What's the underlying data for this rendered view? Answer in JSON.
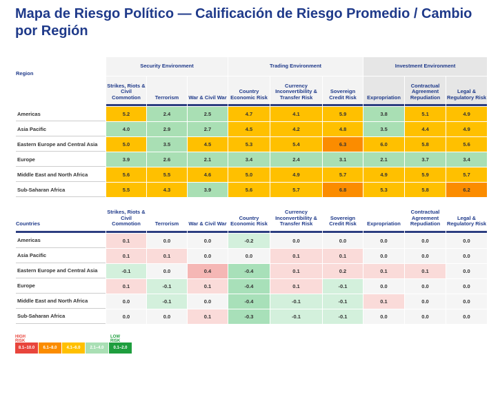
{
  "title": "Mapa de Riesgo Político — Calificación de Riesgo Promedio / Cambio por Región",
  "chart_data": [
    {
      "type": "heatmap",
      "title": "Average risk rating",
      "row_header": "Region",
      "groups": [
        {
          "label": "Security Environment",
          "span": 3
        },
        {
          "label": "Trading Environment",
          "span": 3
        },
        {
          "label": "Investment Environment",
          "span": 3
        }
      ],
      "columns": [
        "Strikes, Riots & Civil Commotion",
        "Terrorism",
        "War & Civil War",
        "Country Economic Risk",
        "Currency Inconvertibility & Transfer Risk",
        "Sovereign Credit Risk",
        "Expropriation",
        "Contractual Agreement Repudiation",
        "Legal & Regulatory Risk"
      ],
      "rows": [
        {
          "label": "Americas",
          "values": [
            "5.2",
            "2.4",
            "2.5",
            "4.7",
            "4.1",
            "5.9",
            "3.8",
            "5.1",
            "4.9"
          ]
        },
        {
          "label": "Asia Pacific",
          "values": [
            "4.0",
            "2.9",
            "2.7",
            "4.5",
            "4.2",
            "4.8",
            "3.5",
            "4.4",
            "4.9"
          ]
        },
        {
          "label": "Eastern Europe and Central Asia",
          "values": [
            "5.0",
            "3.5",
            "4.5",
            "5.3",
            "5.4",
            "6.3",
            "6.0",
            "5.8",
            "5.6"
          ]
        },
        {
          "label": "Europe",
          "values": [
            "3.9",
            "2.6",
            "2.1",
            "3.4",
            "2.4",
            "3.1",
            "2.1",
            "3.7",
            "3.4"
          ]
        },
        {
          "label": "Middle East and North Africa",
          "values": [
            "5.6",
            "5.5",
            "4.6",
            "5.0",
            "4.9",
            "5.7",
            "4.9",
            "5.9",
            "5.7"
          ]
        },
        {
          "label": "Sub-Saharan Africa",
          "values": [
            "5.5",
            "4.3",
            "3.9",
            "5.6",
            "5.7",
            "6.8",
            "5.3",
            "5.8",
            "6.2"
          ]
        }
      ]
    },
    {
      "type": "heatmap",
      "title": "Change",
      "row_header": "Countries",
      "columns": [
        "Strikes, Riots & Civil Commotion",
        "Terrorism",
        "War & Civil War",
        "Country Economic Risk",
        "Currency Inconvertibility & Transfer Risk",
        "Sovereign Credit Risk",
        "Expropriation",
        "Contractual Agreement Repudiation",
        "Legal & Regulatory Risk"
      ],
      "rows": [
        {
          "label": "Americas",
          "values": [
            "0.1",
            "0.0",
            "0.0",
            "-0.2",
            "0.0",
            "0.0",
            "0.0",
            "0.0",
            "0.0"
          ]
        },
        {
          "label": "Asia Pacific",
          "values": [
            "0.1",
            "0.1",
            "0.0",
            "0.0",
            "0.1",
            "0.1",
            "0.0",
            "0.0",
            "0.0"
          ]
        },
        {
          "label": "Eastern Europe and Central Asia",
          "values": [
            "-0.1",
            "0.0",
            "0.4",
            "-0.4",
            "0.1",
            "0.2",
            "0.1",
            "0.1",
            "0.0"
          ]
        },
        {
          "label": "Europe",
          "values": [
            "0.1",
            "-0.1",
            "0.1",
            "-0.4",
            "0.1",
            "-0.1",
            "0.0",
            "0.0",
            "0.0"
          ]
        },
        {
          "label": "Middle East and North Africa",
          "values": [
            "0.0",
            "-0.1",
            "0.0",
            "-0.4",
            "-0.1",
            "-0.1",
            "0.1",
            "0.0",
            "0.0"
          ]
        },
        {
          "label": "Sub-Saharan Africa",
          "values": [
            "0.0",
            "0.0",
            "0.1",
            "-0.3",
            "-0.1",
            "-0.1",
            "0.0",
            "0.0",
            "0.0"
          ]
        }
      ]
    }
  ],
  "legend": {
    "high_label": "HIGH RISK",
    "low_label": "LOW RISK",
    "items": [
      {
        "label": "8.1–10.0",
        "color": "#e8453c"
      },
      {
        "label": "6.1–8.0",
        "color": "#fb8c00"
      },
      {
        "label": "4.1–6.0",
        "color": "#ffc000"
      },
      {
        "label": "2.1–4.0",
        "color": "#a9dfb4"
      },
      {
        "label": "0.1–2.0",
        "color": "#1e9e3e"
      }
    ]
  }
}
